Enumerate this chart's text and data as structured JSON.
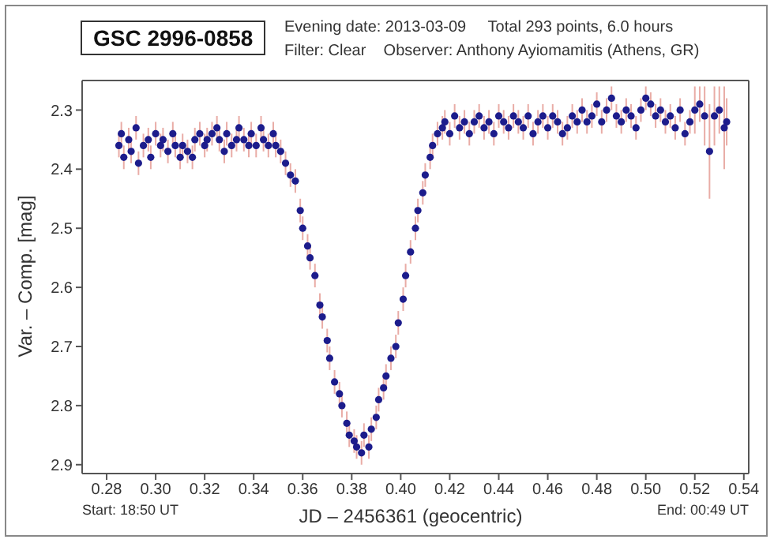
{
  "chart_data": {
    "type": "scatter",
    "title": "GSC 2996-0858",
    "subtitle": "Evening date: 2013-03-09     Total 293 points, 6.0 hours\nFilter: Clear    Observer: Anthony Ayiomamitis (Athens, GR)",
    "xlabel": "JD – 2456361  (geocentric)",
    "ylabel": "Var. – Comp. [mag]",
    "annotations": [
      "Start: 18:50 UT",
      "End: 00:49 UT"
    ],
    "color": "#1c1c8c",
    "marker": "circle",
    "x": [
      0.285,
      0.286,
      0.287,
      0.289,
      0.29,
      0.292,
      0.293,
      0.295,
      0.297,
      0.298,
      0.3,
      0.302,
      0.303,
      0.305,
      0.307,
      0.308,
      0.31,
      0.311,
      0.313,
      0.315,
      0.316,
      0.318,
      0.32,
      0.321,
      0.323,
      0.325,
      0.326,
      0.328,
      0.329,
      0.331,
      0.333,
      0.334,
      0.336,
      0.338,
      0.339,
      0.341,
      0.343,
      0.344,
      0.346,
      0.348,
      0.349,
      0.351,
      0.353,
      0.355,
      0.357,
      0.359,
      0.36,
      0.362,
      0.363,
      0.365,
      0.367,
      0.368,
      0.37,
      0.371,
      0.373,
      0.375,
      0.376,
      0.378,
      0.379,
      0.381,
      0.382,
      0.384,
      0.385,
      0.387,
      0.388,
      0.39,
      0.391,
      0.393,
      0.394,
      0.396,
      0.398,
      0.399,
      0.401,
      0.402,
      0.404,
      0.406,
      0.407,
      0.409,
      0.41,
      0.412,
      0.413,
      0.415,
      0.417,
      0.418,
      0.42,
      0.422,
      0.424,
      0.426,
      0.428,
      0.43,
      0.432,
      0.434,
      0.436,
      0.438,
      0.44,
      0.442,
      0.444,
      0.446,
      0.448,
      0.45,
      0.452,
      0.454,
      0.456,
      0.458,
      0.46,
      0.462,
      0.464,
      0.466,
      0.468,
      0.47,
      0.472,
      0.474,
      0.476,
      0.478,
      0.48,
      0.482,
      0.484,
      0.486,
      0.488,
      0.49,
      0.492,
      0.494,
      0.496,
      0.498,
      0.5,
      0.502,
      0.504,
      0.506,
      0.508,
      0.51,
      0.512,
      0.514,
      0.516,
      0.518,
      0.52,
      0.522,
      0.524,
      0.526,
      0.528,
      0.53,
      0.532,
      0.533
    ],
    "values": [
      2.36,
      2.34,
      2.38,
      2.35,
      2.37,
      2.33,
      2.39,
      2.36,
      2.35,
      2.38,
      2.34,
      2.36,
      2.35,
      2.37,
      2.34,
      2.36,
      2.38,
      2.36,
      2.37,
      2.38,
      2.35,
      2.34,
      2.36,
      2.35,
      2.34,
      2.33,
      2.35,
      2.37,
      2.34,
      2.36,
      2.35,
      2.33,
      2.35,
      2.36,
      2.34,
      2.36,
      2.33,
      2.35,
      2.36,
      2.34,
      2.36,
      2.37,
      2.39,
      2.41,
      2.42,
      2.47,
      2.5,
      2.53,
      2.55,
      2.58,
      2.63,
      2.65,
      2.69,
      2.72,
      2.76,
      2.78,
      2.8,
      2.83,
      2.85,
      2.86,
      2.87,
      2.88,
      2.85,
      2.87,
      2.84,
      2.82,
      2.79,
      2.77,
      2.75,
      2.72,
      2.7,
      2.66,
      2.62,
      2.58,
      2.54,
      2.5,
      2.47,
      2.44,
      2.41,
      2.38,
      2.36,
      2.34,
      2.33,
      2.32,
      2.34,
      2.31,
      2.33,
      2.32,
      2.34,
      2.32,
      2.31,
      2.33,
      2.32,
      2.34,
      2.31,
      2.32,
      2.33,
      2.31,
      2.32,
      2.33,
      2.31,
      2.34,
      2.32,
      2.31,
      2.33,
      2.31,
      2.32,
      2.34,
      2.33,
      2.31,
      2.32,
      2.3,
      2.32,
      2.31,
      2.29,
      2.32,
      2.3,
      2.28,
      2.31,
      2.32,
      2.3,
      2.31,
      2.33,
      2.3,
      2.28,
      2.29,
      2.31,
      2.3,
      2.32,
      2.31,
      2.33,
      2.3,
      2.34,
      2.32,
      2.3,
      2.29,
      2.31,
      2.37,
      2.31,
      2.3,
      2.33,
      2.32
    ],
    "errors": [
      0.02,
      0.02,
      0.02,
      0.02,
      0.02,
      0.02,
      0.02,
      0.02,
      0.02,
      0.02,
      0.02,
      0.02,
      0.02,
      0.02,
      0.02,
      0.02,
      0.02,
      0.02,
      0.02,
      0.02,
      0.02,
      0.02,
      0.02,
      0.02,
      0.02,
      0.02,
      0.02,
      0.02,
      0.02,
      0.02,
      0.02,
      0.02,
      0.02,
      0.02,
      0.02,
      0.02,
      0.02,
      0.02,
      0.02,
      0.02,
      0.02,
      0.02,
      0.02,
      0.02,
      0.02,
      0.02,
      0.02,
      0.02,
      0.02,
      0.02,
      0.02,
      0.02,
      0.02,
      0.02,
      0.02,
      0.02,
      0.02,
      0.02,
      0.02,
      0.02,
      0.02,
      0.02,
      0.02,
      0.02,
      0.02,
      0.02,
      0.02,
      0.02,
      0.02,
      0.02,
      0.02,
      0.02,
      0.02,
      0.02,
      0.02,
      0.02,
      0.02,
      0.02,
      0.02,
      0.02,
      0.02,
      0.02,
      0.02,
      0.02,
      0.02,
      0.02,
      0.02,
      0.02,
      0.02,
      0.02,
      0.02,
      0.02,
      0.02,
      0.02,
      0.02,
      0.02,
      0.02,
      0.02,
      0.02,
      0.02,
      0.02,
      0.02,
      0.02,
      0.02,
      0.02,
      0.02,
      0.02,
      0.02,
      0.02,
      0.02,
      0.02,
      0.02,
      0.02,
      0.02,
      0.02,
      0.02,
      0.02,
      0.02,
      0.02,
      0.02,
      0.02,
      0.02,
      0.02,
      0.02,
      0.02,
      0.02,
      0.02,
      0.02,
      0.02,
      0.02,
      0.02,
      0.02,
      0.02,
      0.02,
      0.04,
      0.03,
      0.05,
      0.08,
      0.05,
      0.04,
      0.07,
      0.04
    ],
    "xlim": [
      0.27,
      0.542
    ],
    "ylim": [
      2.915,
      2.25
    ],
    "xticks": [
      0.28,
      {
        "value": 0.3,
        "label": "0.30"
      },
      0.32,
      0.34,
      0.36,
      0.38,
      {
        "value": 0.4,
        "label": "0.40"
      },
      0.42,
      0.44,
      0.46,
      0.48,
      {
        "value": 0.5,
        "label": "0.50"
      },
      0.52,
      0.54
    ],
    "yticks": [
      2.3,
      2.4,
      2.5,
      2.6,
      2.7,
      2.8,
      2.9
    ]
  }
}
